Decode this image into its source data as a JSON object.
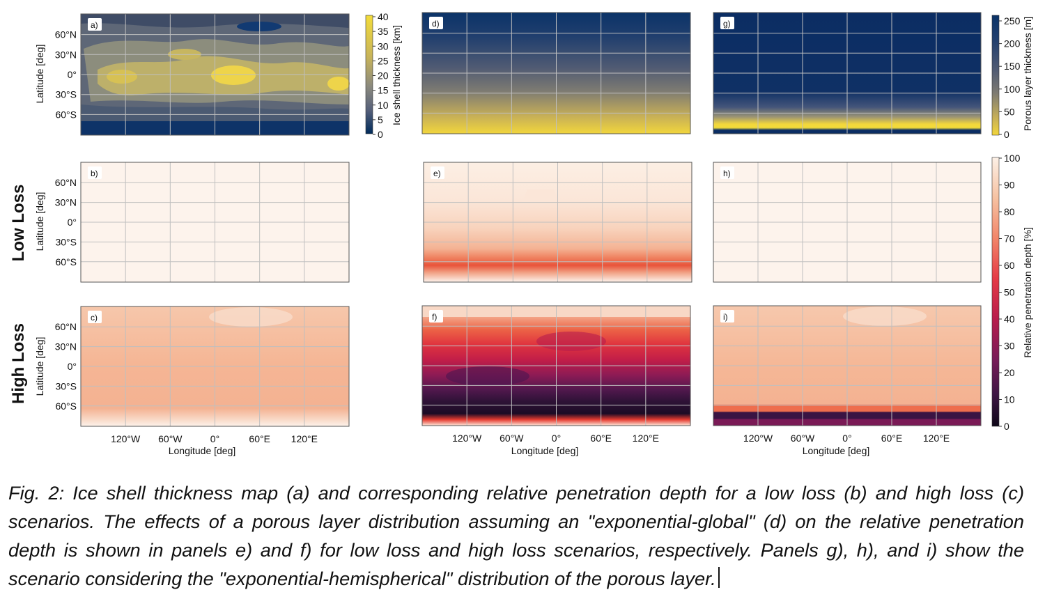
{
  "figure": {
    "row_labels": [
      "Low Loss",
      "High Loss"
    ],
    "lat_ticks": [
      "60°N",
      "30°N",
      "0°",
      "30°S",
      "60°S"
    ],
    "lon_ticks": [
      "120°W",
      "60°W",
      "0°",
      "60°E",
      "120°E"
    ],
    "ylabel": "Latitude [deg]",
    "xlabel": "Longitude [deg]",
    "panels": [
      {
        "letter": "a)",
        "kind": "ice-thickness"
      },
      {
        "letter": "b)",
        "kind": "penetration-low"
      },
      {
        "letter": "c)",
        "kind": "penetration-high"
      },
      {
        "letter": "d)",
        "kind": "porous-exp-global"
      },
      {
        "letter": "e)",
        "kind": "penetration-low-porous-global"
      },
      {
        "letter": "f)",
        "kind": "penetration-high-porous-global"
      },
      {
        "letter": "g)",
        "kind": "porous-exp-hemispherical"
      },
      {
        "letter": "h)",
        "kind": "penetration-low-porous-hemi"
      },
      {
        "letter": "i)",
        "kind": "penetration-high-porous-hemi"
      }
    ],
    "colorbars": {
      "ice": {
        "label": "Ice shell thickness [km]",
        "ticks": [
          "40",
          "35",
          "30",
          "25",
          "20",
          "15",
          "10",
          "5",
          "0"
        ]
      },
      "porous": {
        "label": "Porous layer thickness [m]",
        "ticks": [
          "250",
          "200",
          "150",
          "100",
          "50",
          "0"
        ]
      },
      "penetration": {
        "label": "Relative penetration depth [%]",
        "ticks": [
          "100",
          "90",
          "80",
          "70",
          "60",
          "50",
          "40",
          "30",
          "20",
          "10",
          "0"
        ]
      }
    },
    "colors": {
      "cividis_low": "#002b5b",
      "cividis_high": "#f3dc3a",
      "rocket_low": "#1a0b22",
      "rocket_high": "#fcf0e6"
    }
  },
  "caption": {
    "text": "Fig. 2: Ice shell thickness map (a) and corresponding relative penetration depth for a low loss (b) and high loss (c) scenarios. The effects of a porous layer distribution assuming an \"exponential-global\" (d) on the relative penetration depth is shown in panels e) and f) for low loss and high loss scenarios, respectively. Panels g), h), and i) show the scenario considering the \"exponential-hemispherical\" distribution of the porous layer."
  }
}
